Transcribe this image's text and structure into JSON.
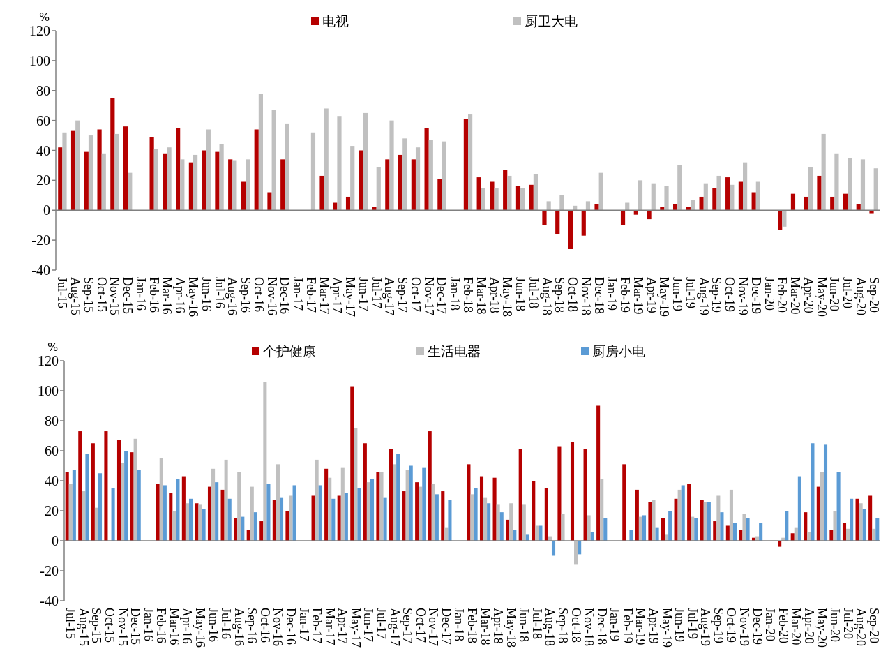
{
  "chart_data": [
    {
      "type": "bar",
      "ylabel": "%",
      "legend": "top",
      "ylim": [
        -40,
        120
      ],
      "yticks": [
        -40,
        -20,
        0,
        20,
        40,
        60,
        80,
        100,
        120
      ],
      "categories": [
        "Jul-15",
        "Aug-15",
        "Sep-15",
        "Oct-15",
        "Nov-15",
        "Dec-15",
        "Jan-16",
        "Feb-16",
        "Mar-16",
        "Apr-16",
        "May-16",
        "Jun-16",
        "Jul-16",
        "Aug-16",
        "Sep-16",
        "Oct-16",
        "Nov-16",
        "Dec-16",
        "Jan-17",
        "Feb-17",
        "Mar-17",
        "Apr-17",
        "May-17",
        "Jun-17",
        "Jul-17",
        "Aug-17",
        "Sep-17",
        "Oct-17",
        "Nov-17",
        "Dec-17",
        "Jan-18",
        "Feb-18",
        "Mar-18",
        "Apr-18",
        "May-18",
        "Jun-18",
        "Jul-18",
        "Aug-18",
        "Sep-18",
        "Oct-18",
        "Nov-18",
        "Dec-18",
        "Jan-19",
        "Feb-19",
        "Mar-19",
        "Apr-19",
        "May-19",
        "Jun-19",
        "Jul-19",
        "Aug-19",
        "Sep-19",
        "Oct-19",
        "Nov-19",
        "Dec-19",
        "Jan-20",
        "Feb-20",
        "Mar-20",
        "Apr-20",
        "May-20",
        "Jun-20",
        "Jul-20",
        "Aug-20",
        "Sep-20"
      ],
      "series": [
        {
          "name": "电视",
          "color": "#b50000",
          "values": [
            42,
            53,
            39,
            54,
            75,
            56,
            null,
            49,
            38,
            55,
            32,
            40,
            39,
            34,
            19,
            54,
            12,
            34,
            null,
            null,
            23,
            5,
            9,
            40,
            2,
            34,
            37,
            34,
            55,
            21,
            null,
            61,
            22,
            19,
            27,
            16,
            17,
            -10,
            -16,
            -26,
            -17,
            4,
            null,
            -10,
            -3,
            -6,
            2,
            4,
            2,
            9,
            15,
            22,
            19,
            12,
            null,
            -13,
            11,
            9,
            23,
            9,
            11,
            4,
            -2
          ]
        },
        {
          "name": "厨卫大电",
          "color": "#c0c0c0",
          "values": [
            52,
            60,
            50,
            38,
            51,
            25,
            null,
            41,
            42,
            34,
            37,
            54,
            44,
            33,
            34,
            78,
            67,
            58,
            null,
            52,
            68,
            63,
            43,
            65,
            29,
            60,
            48,
            42,
            47,
            46,
            null,
            64,
            15,
            15,
            23,
            15,
            24,
            6,
            10,
            3,
            6,
            25,
            null,
            5,
            20,
            18,
            16,
            30,
            7,
            18,
            23,
            17,
            32,
            19,
            null,
            -11,
            0,
            29,
            51,
            38,
            35,
            34,
            28
          ]
        }
      ]
    },
    {
      "type": "bar",
      "ylabel": "%",
      "legend": "top",
      "ylim": [
        -40,
        120
      ],
      "yticks": [
        -40,
        -20,
        0,
        20,
        40,
        60,
        80,
        100,
        120
      ],
      "categories": [
        "Jul-15",
        "Aug-15",
        "Sep-15",
        "Oct-15",
        "Nov-15",
        "Dec-15",
        "Jan-16",
        "Feb-16",
        "Mar-16",
        "Apr-16",
        "May-16",
        "Jun-16",
        "Jul-16",
        "Aug-16",
        "Sep-16",
        "Oct-16",
        "Nov-16",
        "Dec-16",
        "Jan-17",
        "Feb-17",
        "Mar-17",
        "Apr-17",
        "May-17",
        "Jun-17",
        "Jul-17",
        "Aug-17",
        "Sep-17",
        "Oct-17",
        "Nov-17",
        "Dec-17",
        "Jan-18",
        "Feb-18",
        "Mar-18",
        "Apr-18",
        "May-18",
        "Jun-18",
        "Jul-18",
        "Aug-18",
        "Sep-18",
        "Oct-18",
        "Nov-18",
        "Dec-18",
        "Jan-19",
        "Feb-19",
        "Mar-19",
        "Apr-19",
        "May-19",
        "Jun-19",
        "Jul-19",
        "Aug-19",
        "Sep-19",
        "Oct-19",
        "Nov-19",
        "Dec-19",
        "Jan-20",
        "Feb-20",
        "Mar-20",
        "Apr-20",
        "May-20",
        "Jun-20",
        "Jul-20",
        "Aug-20",
        "Sep-20"
      ],
      "series": [
        {
          "name": "个护健康",
          "color": "#b50000",
          "values": [
            46,
            73,
            65,
            73,
            67,
            59,
            null,
            38,
            32,
            43,
            25,
            36,
            34,
            15,
            7,
            13,
            27,
            20,
            null,
            30,
            48,
            30,
            103,
            65,
            46,
            61,
            33,
            39,
            73,
            33,
            null,
            51,
            43,
            42,
            14,
            61,
            40,
            35,
            63,
            66,
            61,
            90,
            null,
            51,
            34,
            26,
            15,
            28,
            38,
            27,
            13,
            10,
            7,
            2,
            null,
            -4,
            5,
            19,
            36,
            7,
            12,
            28,
            30
          ]
        },
        {
          "name": "生活电器",
          "color": "#c0c0c0",
          "values": [
            38,
            33,
            22,
            null,
            52,
            68,
            null,
            55,
            20,
            25,
            24,
            48,
            54,
            46,
            36,
            106,
            51,
            30,
            null,
            54,
            42,
            49,
            75,
            39,
            46,
            51,
            47,
            36,
            38,
            9,
            null,
            31,
            29,
            24,
            25,
            24,
            10,
            3,
            18,
            -16,
            17,
            41,
            null,
            null,
            16,
            27,
            4,
            34,
            16,
            26,
            30,
            34,
            18,
            3,
            null,
            2,
            9,
            6,
            46,
            20,
            8,
            25,
            8
          ]
        },
        {
          "name": "厨房小电",
          "color": "#5b9bd5",
          "values": [
            47,
            58,
            45,
            35,
            60,
            47,
            null,
            37,
            41,
            28,
            21,
            39,
            28,
            16,
            19,
            38,
            29,
            37,
            null,
            37,
            28,
            32,
            35,
            41,
            29,
            58,
            50,
            49,
            31,
            27,
            null,
            35,
            25,
            19,
            7,
            4,
            10,
            -10,
            null,
            -9,
            6,
            15,
            null,
            7,
            17,
            9,
            20,
            37,
            15,
            26,
            19,
            12,
            15,
            12,
            null,
            20,
            43,
            65,
            64,
            46,
            28,
            21,
            15
          ]
        }
      ]
    }
  ]
}
